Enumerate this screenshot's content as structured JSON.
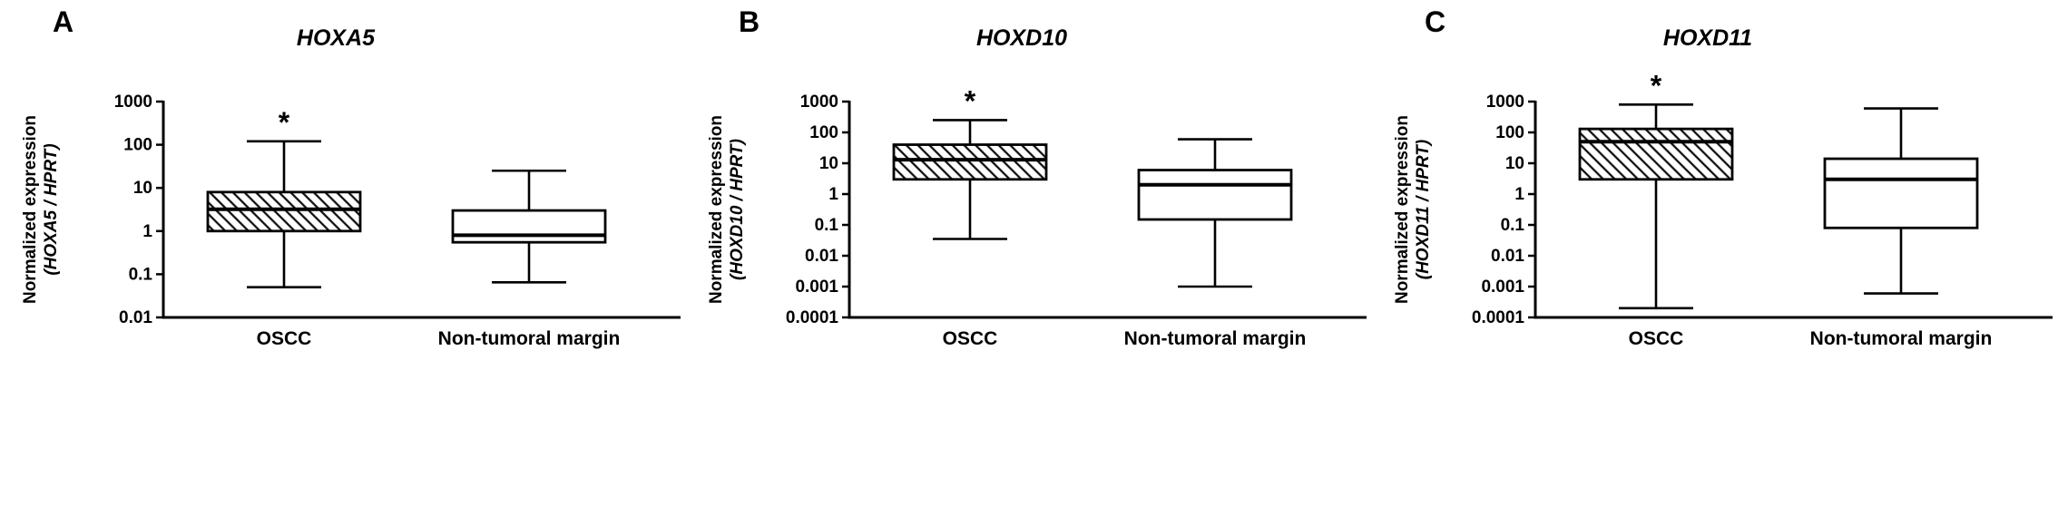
{
  "chart_data": [
    {
      "type": "box",
      "panel_label": "A",
      "title": "HOXA5",
      "ylabel_line1": "Normalized expression",
      "ylabel_line2": "(HOXA5 / HPRT)",
      "y_scale": "log10",
      "ylim": [
        0.01,
        1000
      ],
      "ytick_labels": [
        "1000",
        "100",
        "10",
        "1",
        "0.1",
        "0.01"
      ],
      "categories": [
        "OSCC",
        "Non-tumoral margin"
      ],
      "boxes": [
        {
          "category": "OSCC",
          "whisker_low": 0.05,
          "q1": 1.0,
          "median": 3.2,
          "q3": 8.0,
          "whisker_high": 120,
          "fill_style": "hatched",
          "annotation": "*"
        },
        {
          "category": "Non-tumoral margin",
          "whisker_low": 0.065,
          "q1": 0.55,
          "median": 0.8,
          "q3": 3.0,
          "whisker_high": 25,
          "fill_style": "white",
          "annotation": ""
        }
      ]
    },
    {
      "type": "box",
      "panel_label": "B",
      "title": "HOXD10",
      "ylabel_line1": "Normalized expression",
      "ylabel_line2": "(HOXD10 / HPRT)",
      "y_scale": "log10",
      "ylim": [
        0.0001,
        1000
      ],
      "ytick_labels": [
        "1000",
        "100",
        "10",
        "1",
        "0.1",
        "0.01",
        "0.001",
        "0.0001"
      ],
      "categories": [
        "OSCC",
        "Non-tumoral margin"
      ],
      "boxes": [
        {
          "category": "OSCC",
          "whisker_low": 0.035,
          "q1": 3.0,
          "median": 13,
          "q3": 40,
          "whisker_high": 250,
          "fill_style": "hatched",
          "annotation": "*"
        },
        {
          "category": "Non-tumoral margin",
          "whisker_low": 0.001,
          "q1": 0.15,
          "median": 2.0,
          "q3": 6.0,
          "whisker_high": 60,
          "fill_style": "white",
          "annotation": ""
        }
      ]
    },
    {
      "type": "box",
      "panel_label": "C",
      "title": "HOXD11",
      "ylabel_line1": "Normalized expression",
      "ylabel_line2": "(HOXD11 / HPRT)",
      "y_scale": "log10",
      "ylim": [
        0.0001,
        1000
      ],
      "ytick_labels": [
        "1000",
        "100",
        "10",
        "1",
        "0.1",
        "0.01",
        "0.001",
        "0.0001"
      ],
      "categories": [
        "OSCC",
        "Non-tumoral margin"
      ],
      "boxes": [
        {
          "category": "OSCC",
          "whisker_low": 0.0002,
          "q1": 3.0,
          "median": 50,
          "q3": 130,
          "whisker_high": 800,
          "fill_style": "hatched",
          "annotation": "*"
        },
        {
          "category": "Non-tumoral margin",
          "whisker_low": 0.0006,
          "q1": 0.08,
          "median": 3.0,
          "q3": 14,
          "whisker_high": 600,
          "fill_style": "white",
          "annotation": ""
        }
      ]
    }
  ],
  "style": {
    "axis_color": "#000000",
    "box_fill": "#ffffff",
    "hatch_color": "#111111",
    "background": "#ffffff"
  }
}
